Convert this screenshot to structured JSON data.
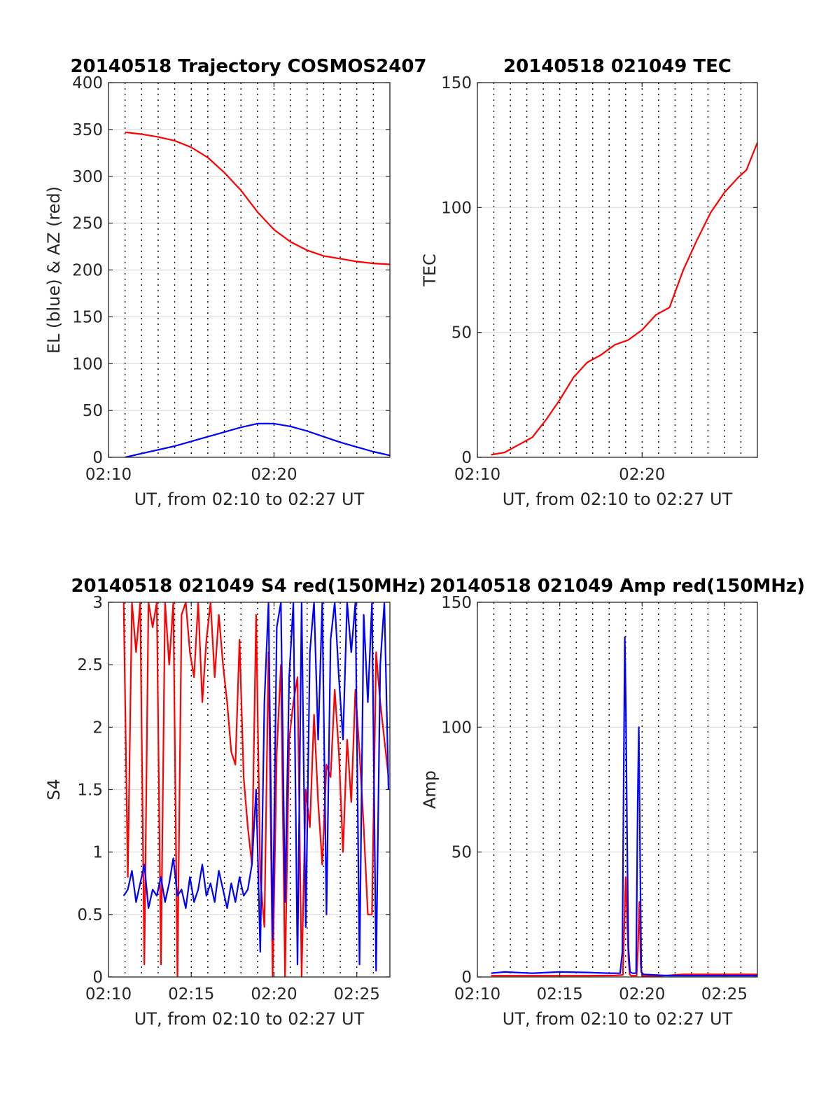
{
  "colors": {
    "red": "#ff0000",
    "blue": "#0000ff",
    "axis": "#262626",
    "grid": "#dcdcdc"
  },
  "chart_data": [
    {
      "id": "trajectory",
      "type": "line",
      "title": "20140518 Trajectory COSMOS2407",
      "xlabel": "UT, from 02:10 to 02:27 UT",
      "ylabel": "EL (blue) & AZ (red)",
      "xlim": [
        0,
        1020
      ],
      "ylim": [
        0,
        400
      ],
      "x_ticks": [
        0,
        600
      ],
      "x_tick_labels": [
        "02:10",
        "02:20"
      ],
      "y_ticks": [
        0,
        50,
        100,
        150,
        200,
        250,
        300,
        350,
        400
      ],
      "y_tick_labels": [
        "0",
        "50",
        "100",
        "150",
        "200",
        "250",
        "300",
        "350",
        "400"
      ],
      "dotted_gridlines_sec": [
        60,
        120,
        180,
        240,
        300,
        360,
        420,
        480,
        540,
        600,
        660,
        720,
        780,
        840,
        900,
        960
      ],
      "series": [
        {
          "color": "#ff0000",
          "x": [
            60,
            120,
            180,
            240,
            300,
            360,
            420,
            480,
            540,
            600,
            660,
            720,
            780,
            840,
            900,
            960,
            1020
          ],
          "values": [
            347,
            345,
            342,
            338,
            331,
            320,
            304,
            285,
            262,
            243,
            230,
            221,
            215,
            212,
            209,
            207,
            206
          ]
        },
        {
          "color": "#0000ff",
          "x": [
            60,
            120,
            180,
            240,
            300,
            360,
            420,
            480,
            540,
            600,
            660,
            720,
            780,
            840,
            900,
            960,
            1020
          ],
          "values": [
            0,
            4,
            8,
            12,
            17,
            22,
            27,
            32,
            36,
            36,
            33,
            28,
            22,
            16,
            11,
            6,
            2
          ]
        }
      ]
    },
    {
      "id": "tec",
      "type": "line",
      "title": "20140518 021049 TEC",
      "xlabel": "UT, from 02:10 to 02:27 UT",
      "ylabel": "TEC",
      "xlim": [
        0,
        1020
      ],
      "ylim": [
        0,
        150
      ],
      "x_ticks": [
        0,
        600
      ],
      "x_tick_labels": [
        "02:10",
        "02:20"
      ],
      "y_ticks": [
        0,
        50,
        100,
        150
      ],
      "y_tick_labels": [
        "0",
        "50",
        "100",
        "150"
      ],
      "dotted_gridlines_sec": [
        60,
        120,
        180,
        240,
        300,
        360,
        420,
        480,
        540,
        600,
        660,
        720,
        780,
        840,
        900,
        960
      ],
      "series": [
        {
          "color": "#ff0000",
          "x": [
            50,
            100,
            150,
            200,
            250,
            300,
            350,
            400,
            450,
            500,
            550,
            600,
            650,
            700,
            750,
            800,
            850,
            900,
            950,
            980,
            1020
          ],
          "values": [
            1,
            2,
            5,
            8,
            15,
            23,
            32,
            38,
            41,
            45,
            47,
            51,
            57,
            60,
            75,
            87,
            98,
            106,
            112,
            115,
            126
          ]
        }
      ]
    },
    {
      "id": "s4",
      "type": "line",
      "title": "20140518 021049 S4 red(150MHz)",
      "xlabel": "UT, from 02:10 to 02:27 UT",
      "ylabel": "S4",
      "xlim": [
        0,
        1020
      ],
      "ylim": [
        0,
        3
      ],
      "x_ticks": [
        0,
        300,
        600,
        900
      ],
      "x_tick_labels": [
        "02:10",
        "02:15",
        "02:20",
        "02:25"
      ],
      "y_ticks": [
        0,
        0.5,
        1,
        1.5,
        2,
        2.5,
        3
      ],
      "y_tick_labels": [
        "0",
        "0.5",
        "1",
        "1.5",
        "2",
        "2.5",
        "3"
      ],
      "dotted_gridlines_sec": [
        60,
        120,
        180,
        240,
        300,
        360,
        420,
        480,
        540,
        600,
        660,
        720,
        780,
        840,
        900,
        960
      ],
      "series": [
        {
          "color": "#ff0000",
          "x": [
            55,
            70,
            85,
            100,
            115,
            130,
            145,
            160,
            175,
            190,
            205,
            220,
            235,
            250,
            265,
            280,
            295,
            310,
            325,
            340,
            355,
            370,
            385,
            400,
            415,
            430,
            445,
            460,
            475,
            490,
            505,
            520,
            535,
            550,
            565,
            580,
            595,
            610,
            625,
            640,
            655,
            670,
            685,
            700,
            715,
            730,
            745,
            760,
            775,
            790,
            805,
            820,
            835,
            850,
            865,
            880,
            895,
            910,
            925,
            940,
            955,
            970,
            985,
            1000,
            1015
          ],
          "values": [
            3,
            0.8,
            3,
            2.6,
            3,
            0.1,
            3,
            2.8,
            3,
            0.1,
            3,
            2.5,
            3,
            0,
            2.9,
            3,
            2.6,
            2.4,
            3,
            2.2,
            2.7,
            3,
            2.4,
            2.9,
            2.5,
            2.2,
            1.8,
            1.7,
            2.7,
            1.6,
            1.2,
            0.9,
            2.9,
            0.8,
            0.4,
            2.6,
            0,
            1.8,
            2.5,
            0,
            1.9,
            2.2,
            2.4,
            0,
            1.5,
            1.2,
            2.1,
            1.4,
            0.9,
            1.7,
            1.6,
            2.3,
            1.8,
            1.0,
            1.9,
            1.4,
            2.3,
            1.8,
            1.2,
            0.5,
            0.5,
            2.6,
            2.2,
            1.9,
            1.6
          ]
        },
        {
          "color": "#0000ff",
          "x": [
            55,
            70,
            85,
            100,
            115,
            130,
            145,
            160,
            175,
            190,
            205,
            220,
            235,
            250,
            265,
            280,
            295,
            310,
            325,
            340,
            355,
            370,
            385,
            400,
            415,
            430,
            445,
            460,
            475,
            490,
            505,
            520,
            535,
            550,
            565,
            580,
            595,
            610,
            625,
            640,
            655,
            670,
            685,
            700,
            715,
            730,
            745,
            760,
            775,
            790,
            805,
            820,
            835,
            850,
            865,
            880,
            895,
            910,
            925,
            940,
            955,
            970,
            985,
            1000,
            1015
          ],
          "values": [
            0.65,
            0.7,
            0.85,
            0.6,
            0.75,
            0.9,
            0.55,
            0.7,
            0.65,
            0.8,
            0.6,
            0.75,
            0.95,
            0.65,
            0.7,
            0.55,
            0.8,
            0.6,
            0.7,
            0.9,
            0.65,
            0.75,
            0.6,
            0.85,
            0.7,
            0.55,
            0.75,
            0.6,
            0.8,
            0.65,
            0.7,
            0.9,
            1.5,
            0.2,
            2.2,
            3,
            0.3,
            2.8,
            3,
            0.6,
            2.4,
            3,
            0.1,
            3,
            0.4,
            2.6,
            3,
            1.9,
            3,
            0.5,
            2.7,
            3,
            2.4,
            1.9,
            3,
            2.6,
            3,
            0.1,
            2.9,
            2.2,
            3,
            0.05,
            2.5,
            3,
            1.5
          ]
        }
      ]
    },
    {
      "id": "amp",
      "type": "line",
      "title": "20140518 021049 Amp red(150MHz)",
      "xlabel": "UT, from 02:10 to 02:27 UT",
      "ylabel": "Amp",
      "xlim": [
        0,
        1020
      ],
      "ylim": [
        0,
        150
      ],
      "x_ticks": [
        0,
        300,
        600,
        900
      ],
      "x_tick_labels": [
        "02:10",
        "02:15",
        "02:20",
        "02:25"
      ],
      "y_ticks": [
        0,
        50,
        100,
        150
      ],
      "y_tick_labels": [
        "0",
        "50",
        "100",
        "150"
      ],
      "dotted_gridlines_sec": [
        60,
        120,
        180,
        240,
        300,
        360,
        420,
        480,
        540,
        600,
        660,
        720,
        780,
        840,
        900,
        960
      ],
      "series": [
        {
          "color": "#ff0000",
          "x": [
            50,
            200,
            400,
            500,
            530,
            535,
            540,
            545,
            550,
            555,
            560,
            580,
            585,
            590,
            595,
            600,
            650,
            750,
            850,
            1020
          ],
          "values": [
            0.5,
            0.5,
            0.5,
            0.6,
            0.8,
            20,
            40,
            25,
            8,
            1,
            0.5,
            0.5,
            12,
            30,
            5,
            0.3,
            0.3,
            1,
            1,
            1
          ]
        },
        {
          "color": "#0000ff",
          "x": [
            50,
            100,
            200,
            300,
            400,
            480,
            520,
            528,
            533,
            537,
            541,
            545,
            550,
            556,
            565,
            578,
            584,
            588,
            592,
            597,
            605,
            700,
            800,
            900,
            1020
          ],
          "values": [
            1.5,
            2,
            1.5,
            2,
            1.8,
            1.5,
            1.5,
            10,
            80,
            136,
            106,
            60,
            12,
            2,
            1.5,
            1.5,
            70,
            100,
            55,
            2,
            1,
            0.5,
            0.5,
            0.5,
            0.5
          ]
        }
      ]
    }
  ]
}
